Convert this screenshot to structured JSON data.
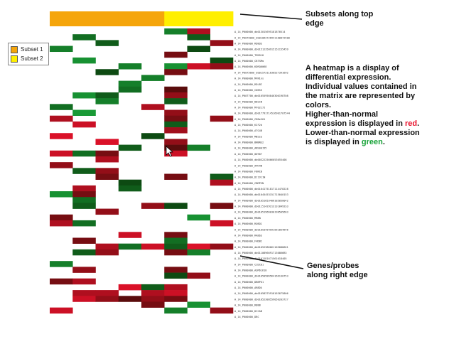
{
  "legend": {
    "items": [
      {
        "label": "Subset 1",
        "color": "#f5a50b"
      },
      {
        "label": "Subset 2",
        "color": "#ffef00"
      }
    ]
  },
  "annotations": {
    "top_line1": "Subsets along top",
    "top_line2": "edge",
    "right_line1": "Genes/probes",
    "right_line2": "along right edge",
    "desc_lines": [
      "A heatmap is a display of",
      "differential expression.",
      "Individual values contained in",
      "the matrix are represented by",
      "colors."
    ],
    "higher_prefix": "Higher-than-normal",
    "higher_line2_prefix": "expression is displayed in ",
    "higher_word": "red",
    "higher_suffix": ".",
    "lower_prefix": "Lower-than-normal expression",
    "lower_line2_prefix": "is displayed in ",
    "lower_word": "green",
    "lower_suffix": "."
  },
  "chart_data": {
    "type": "heatmap",
    "colors": {
      "subset1": "#f5a50b",
      "subset2": "#ffef00",
      "high": "#e8112b",
      "low": "#1aa33a",
      "neutral": "#ffffff"
    },
    "columns": [
      {
        "subset": "Subset 1"
      },
      {
        "subset": "Subset 1"
      },
      {
        "subset": "Subset 1"
      },
      {
        "subset": "Subset 1"
      },
      {
        "subset": "Subset 1"
      },
      {
        "subset": "Subset 2"
      },
      {
        "subset": "Subset 2"
      },
      {
        "subset": "Subset 2"
      }
    ],
    "rows": [
      "A_14_P000000_db013015695181870514",
      "A_14_P0076000_db01063726941180872500",
      "A_14_P000000_RDBOS",
      "A_14_P000000_db01512350915152155459",
      "A_14_P000000_TM2D18",
      "A_14_P000000_CBTSMm",
      "A_14_P000000_KDRQ0068",
      "A_14_P0075600_db0157311630527391692",
      "A_14_P000000_MFN1ns",
      "A_14_P000000_RDLBI",
      "A_14_P000000_CDBS5",
      "A_14_P007700_db01055956846300198708",
      "A_14_P000000_DBSCN",
      "A_14_P000000_MY02172",
      "A_14_P000000_db017791714516901707544",
      "A_14_P000000_CDBeS01",
      "A_14_P000000_KIF2d",
      "A_14_P000000_ATG4B",
      "A_14_P000000_MBSsa",
      "A_14_P000000_BNBNS2",
      "A_14_P000000_ANS00155",
      "A_14_P000000_00907",
      "A_14_P000000_db0032225666053055408",
      "A_14_P000000_APH4N",
      "A_14_P000000_FBNCB",
      "A_14_P000000_DC1911N",
      "A_14_P000000_CBMPSN",
      "A_14_P000000_db01041751817114470228",
      "A_14_P000000_db01045453151715040153",
      "A_14_P000000_db01051653406185050042",
      "A_14_P000000_db011514292131318492S3",
      "A_14_P000000_db01051966030198505663",
      "A_14_P000000_MRBN",
      "A_14_P000000_ROBO1",
      "A_14_P000000_db01053454591561854646",
      "A_14_P000000_RABbS",
      "A_14_P000000_FHDBI",
      "A_14_P000000_db01052386661105088661",
      "A_14_P000000_db01108966917130866B3",
      "A_14_P000000_db0101181671561018405",
      "A_14_P000000_CCDC81",
      "A_14_P000000_ASM61618",
      "A_14_P000000_db01050586564166130753",
      "A_14_P000000_DBBPU1",
      "A_14_P000000_ARBD4",
      "A_14_P000000_db01058375918163075806",
      "A_14_P000000_db01052388559050203727",
      "A_14_P000000_RBBB",
      "A_14_P000000_DCCAB",
      "A_14_P000000_DBC"
    ],
    "values": [
      [
        0,
        0,
        0,
        0,
        0,
        -0.8,
        0.8,
        0
      ],
      [
        0,
        -0.7,
        0,
        0,
        0,
        0,
        -0.6,
        0
      ],
      [
        0,
        0,
        -0.6,
        0,
        0,
        0,
        0,
        0.7
      ],
      [
        -0.8,
        0,
        0,
        0,
        0,
        0,
        -0.5,
        0
      ],
      [
        0,
        0,
        0,
        0,
        0,
        0.6,
        0,
        0
      ],
      [
        0,
        -0.9,
        0,
        0,
        0,
        0,
        0,
        -0.5
      ],
      [
        0,
        0,
        0,
        -0.8,
        0,
        -0.9,
        0.9,
        0.7
      ],
      [
        0,
        0,
        -0.5,
        0,
        0,
        0.6,
        0,
        0
      ],
      [
        0,
        0,
        0,
        0,
        -0.8,
        0,
        0,
        0
      ],
      [
        0,
        0,
        0,
        -0.8,
        0,
        0,
        0,
        0
      ],
      [
        0,
        0,
        0,
        -0.7,
        0,
        0.5,
        0,
        0
      ],
      [
        0,
        -0.9,
        -0.6,
        0,
        0,
        0.7,
        0,
        0
      ],
      [
        0,
        0,
        -0.8,
        0,
        0,
        -0.6,
        0,
        0
      ],
      [
        -0.7,
        0,
        0,
        0,
        0.8,
        0,
        0,
        0
      ],
      [
        0,
        -0.95,
        0,
        0,
        0,
        0.7,
        0,
        0
      ],
      [
        0.8,
        0,
        0,
        0,
        0,
        0.6,
        0,
        0.7
      ],
      [
        0,
        0.9,
        0,
        0,
        0,
        -0.6,
        0,
        0
      ],
      [
        0,
        0,
        0,
        0,
        0,
        0.75,
        0,
        0
      ],
      [
        0.95,
        0,
        0,
        0,
        -0.5,
        0,
        0,
        0
      ],
      [
        0,
        0,
        0.95,
        0,
        0,
        0.7,
        0,
        0
      ],
      [
        0,
        0,
        0,
        -0.6,
        0,
        0.5,
        -0.8,
        0
      ],
      [
        0.9,
        -0.7,
        0.6,
        0,
        0,
        0.9,
        0,
        0
      ],
      [
        0,
        0,
        0.8,
        0,
        0,
        0,
        0,
        0
      ],
      [
        0.7,
        0,
        0,
        0,
        0,
        0,
        0,
        0
      ],
      [
        0,
        -0.6,
        0.7,
        0,
        0,
        0,
        0,
        0
      ],
      [
        0,
        0,
        0.6,
        0,
        0,
        0.6,
        0,
        -0.6
      ],
      [
        0,
        0,
        0,
        -0.5,
        0,
        0,
        0,
        0.8
      ],
      [
        0,
        0.8,
        0,
        -0.6,
        0,
        0,
        0,
        0
      ],
      [
        -0.9,
        0.6,
        0,
        0,
        0,
        0,
        0,
        0
      ],
      [
        0,
        -0.7,
        0,
        0,
        0,
        0,
        0,
        0
      ],
      [
        0,
        -0.6,
        0,
        0,
        0.7,
        -0.5,
        0,
        0.6
      ],
      [
        0,
        0,
        0.7,
        0,
        0,
        0,
        0,
        0
      ],
      [
        0.6,
        0,
        0,
        0,
        0,
        0,
        -0.9,
        0
      ],
      [
        0.8,
        -0.7,
        0,
        0,
        0,
        0,
        0,
        0.9
      ],
      [
        0,
        0,
        0,
        0,
        0,
        0,
        0,
        0
      ],
      [
        0,
        0,
        0,
        0.9,
        0,
        0.6,
        0,
        0
      ],
      [
        0,
        0.6,
        0,
        0,
        0,
        -0.7,
        0,
        0
      ],
      [
        0,
        0,
        0.8,
        -0.7,
        0.9,
        -0.6,
        0.95,
        0.7
      ],
      [
        0,
        -0.6,
        0.7,
        0,
        0,
        0.6,
        -0.8,
        0
      ],
      [
        0,
        0,
        0,
        0,
        0,
        0,
        0,
        0
      ],
      [
        -0.8,
        0,
        0,
        0,
        0,
        0,
        0,
        0
      ],
      [
        0,
        0.7,
        0,
        0,
        0,
        0.6,
        0,
        0
      ],
      [
        0,
        0,
        0,
        0,
        0,
        -0.5,
        0.7,
        0
      ],
      [
        0.6,
        0.8,
        0,
        0,
        0,
        0,
        0,
        0
      ],
      [
        0,
        0,
        0,
        0.95,
        -0.6,
        0.8,
        0,
        0
      ],
      [
        0,
        0.8,
        0.8,
        0,
        0.8,
        0.9,
        0,
        0
      ],
      [
        0,
        0.9,
        0.7,
        0.5,
        0.7,
        0.6,
        0,
        0
      ],
      [
        0,
        0,
        0,
        0,
        0.6,
        0,
        -0.9,
        0
      ],
      [
        0.9,
        0,
        0,
        0,
        0,
        -0.8,
        0,
        0.7
      ],
      [
        0,
        0,
        0,
        0,
        0,
        0,
        0,
        0
      ]
    ]
  }
}
